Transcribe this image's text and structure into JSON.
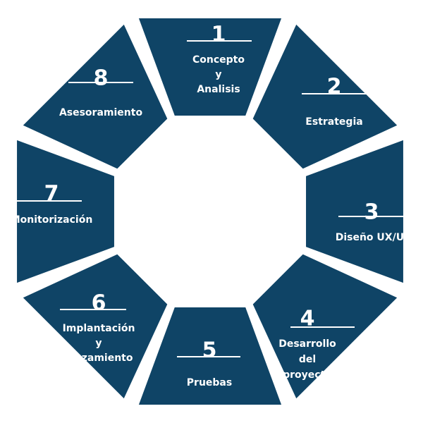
{
  "diagram": {
    "segments": [
      {
        "number": "1",
        "label_lines": [
          "Concepto",
          "y",
          "Analisis"
        ]
      },
      {
        "number": "2",
        "label_lines": [
          "Estrategia"
        ]
      },
      {
        "number": "3",
        "label_lines": [
          "Diseño UX/UI"
        ]
      },
      {
        "number": "4",
        "label_lines": [
          "Desarrollo",
          "del",
          "proyecto"
        ]
      },
      {
        "number": "5",
        "label_lines": [
          "Pruebas"
        ]
      },
      {
        "number": "6",
        "label_lines": [
          "Implantación",
          "y",
          "lanzamiento"
        ]
      },
      {
        "number": "7",
        "label_lines": [
          "Monitorización"
        ]
      },
      {
        "number": "8",
        "label_lines": [
          "Asesoramiento"
        ]
      }
    ],
    "colors": {
      "segment": "#0f4466",
      "text": "#ffffff",
      "background": "#ffffff"
    }
  }
}
